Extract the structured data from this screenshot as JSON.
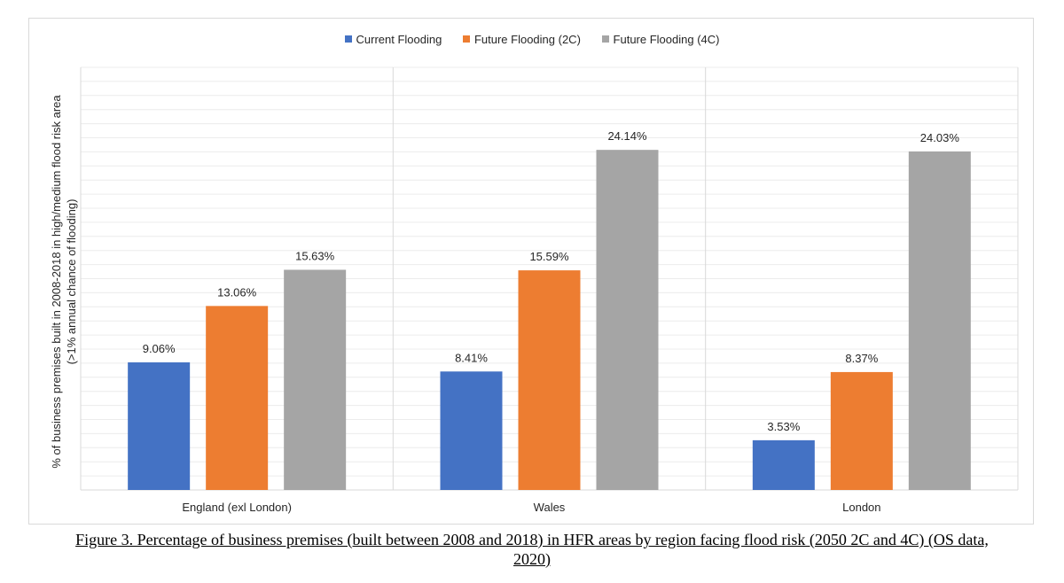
{
  "chart_data": {
    "type": "bar",
    "categories": [
      "England (exl London)",
      "Wales",
      "London"
    ],
    "series": [
      {
        "name": "Current Flooding",
        "color": "#4472c4",
        "values": [
          9.06,
          8.41,
          3.53
        ],
        "labels": [
          "9.06%",
          "8.41%",
          "3.53%"
        ]
      },
      {
        "name": "Future Flooding (2C)",
        "color": "#ed7d31",
        "values": [
          13.06,
          15.59,
          8.37
        ],
        "labels": [
          "13.06%",
          "15.59%",
          "8.37%"
        ]
      },
      {
        "name": "Future Flooding (4C)",
        "color": "#a5a5a5",
        "values": [
          15.63,
          24.14,
          24.03
        ],
        "labels": [
          "15.63%",
          "24.14%",
          "24.03%"
        ]
      }
    ],
    "ylabel_line1": "% of  business premises built in 2008-2018 in high/medium flood risk area",
    "ylabel_line2": "(>1% annual chance of flooding)",
    "ylim": [
      0,
      30
    ],
    "grid": true,
    "legend_position": "top-center"
  },
  "caption": {
    "line1": "Figure 3. Percentage of business premises (built between 2008 and 2018) in HFR areas by region facing flood risk (2050 2C and 4C) (OS data,",
    "line2": "2020)"
  }
}
